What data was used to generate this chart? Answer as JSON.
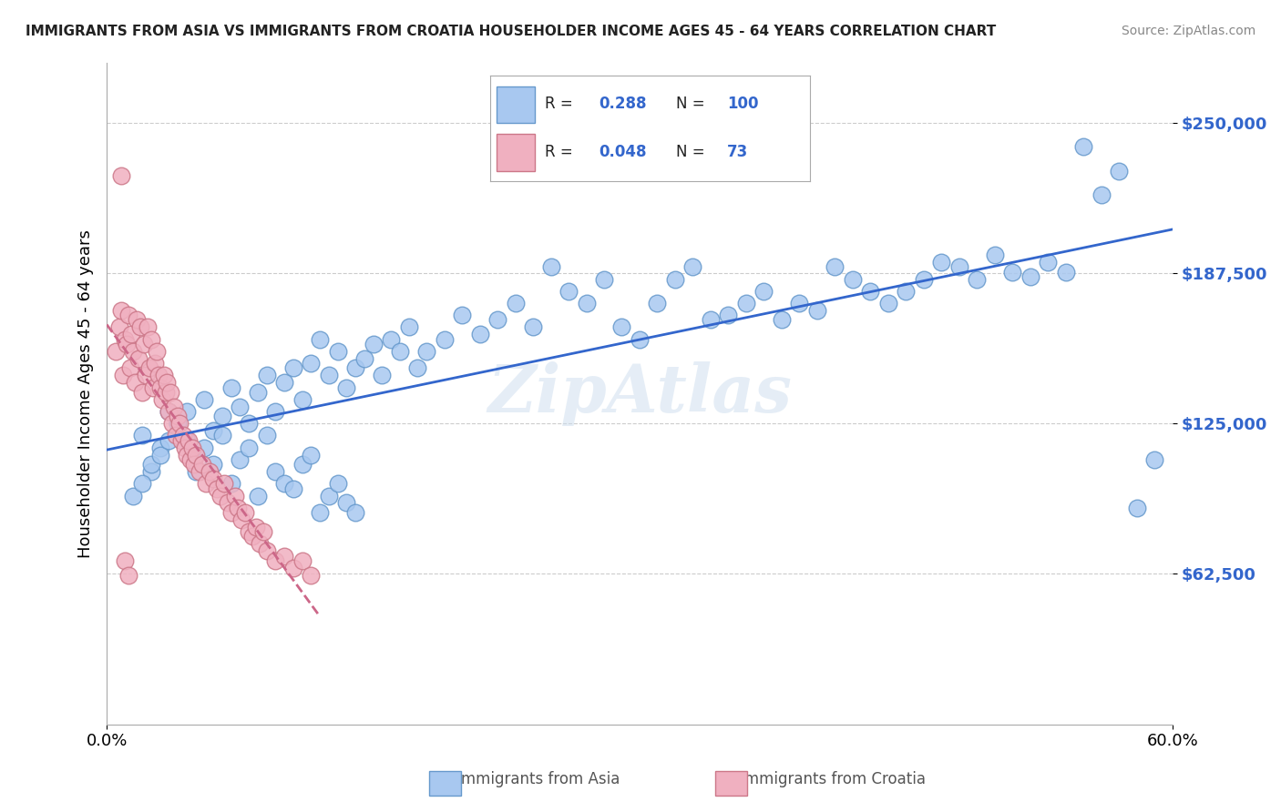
{
  "title": "IMMIGRANTS FROM ASIA VS IMMIGRANTS FROM CROATIA HOUSEHOLDER INCOME AGES 45 - 64 YEARS CORRELATION CHART",
  "source": "Source: ZipAtlas.com",
  "xlabel": "",
  "ylabel": "Householder Income Ages 45 - 64 years",
  "x_min": 0.0,
  "x_max": 0.6,
  "y_min": 0,
  "y_max": 275000,
  "y_ticks": [
    62500,
    125000,
    187500,
    250000
  ],
  "y_tick_labels": [
    "$62,500",
    "$125,000",
    "$187,500",
    "$250,000"
  ],
  "x_tick_labels": [
    "0.0%",
    "60.0%"
  ],
  "legend_asia_R": "0.288",
  "legend_asia_N": "100",
  "legend_croatia_R": "0.048",
  "legend_croatia_N": "73",
  "asia_color": "#a8c8f0",
  "asia_edge_color": "#6699cc",
  "croatia_color": "#f0b0c0",
  "croatia_edge_color": "#cc7788",
  "trend_asia_color": "#3366cc",
  "trend_croatia_color": "#cc6688",
  "watermark": "ZipAtlas",
  "background_color": "#ffffff",
  "grid_color": "#cccccc",
  "asia_scatter_x": [
    0.02,
    0.025,
    0.03,
    0.035,
    0.04,
    0.045,
    0.05,
    0.055,
    0.06,
    0.065,
    0.07,
    0.075,
    0.08,
    0.085,
    0.09,
    0.095,
    0.1,
    0.105,
    0.11,
    0.115,
    0.12,
    0.125,
    0.13,
    0.135,
    0.14,
    0.145,
    0.15,
    0.155,
    0.16,
    0.165,
    0.17,
    0.175,
    0.18,
    0.19,
    0.2,
    0.21,
    0.22,
    0.23,
    0.24,
    0.25,
    0.26,
    0.27,
    0.28,
    0.29,
    0.3,
    0.31,
    0.32,
    0.33,
    0.34,
    0.35,
    0.36,
    0.37,
    0.38,
    0.39,
    0.4,
    0.41,
    0.42,
    0.43,
    0.44,
    0.45,
    0.46,
    0.47,
    0.48,
    0.49,
    0.5,
    0.51,
    0.52,
    0.53,
    0.54,
    0.55,
    0.56,
    0.57,
    0.58,
    0.59,
    0.015,
    0.02,
    0.025,
    0.03,
    0.035,
    0.04,
    0.045,
    0.05,
    0.055,
    0.06,
    0.065,
    0.07,
    0.075,
    0.08,
    0.085,
    0.09,
    0.095,
    0.1,
    0.105,
    0.11,
    0.115,
    0.12,
    0.125,
    0.13,
    0.135,
    0.14
  ],
  "asia_scatter_y": [
    120000,
    105000,
    115000,
    130000,
    125000,
    118000,
    112000,
    135000,
    122000,
    128000,
    140000,
    132000,
    125000,
    138000,
    145000,
    130000,
    142000,
    148000,
    135000,
    150000,
    160000,
    145000,
    155000,
    140000,
    148000,
    152000,
    158000,
    145000,
    160000,
    155000,
    165000,
    148000,
    155000,
    160000,
    170000,
    162000,
    168000,
    175000,
    165000,
    190000,
    180000,
    175000,
    185000,
    165000,
    160000,
    175000,
    185000,
    190000,
    168000,
    170000,
    175000,
    180000,
    168000,
    175000,
    172000,
    190000,
    185000,
    180000,
    175000,
    180000,
    185000,
    192000,
    190000,
    185000,
    195000,
    188000,
    186000,
    192000,
    188000,
    240000,
    220000,
    230000,
    90000,
    110000,
    95000,
    100000,
    108000,
    112000,
    118000,
    125000,
    130000,
    105000,
    115000,
    108000,
    120000,
    100000,
    110000,
    115000,
    95000,
    120000,
    105000,
    100000,
    98000,
    108000,
    112000,
    88000,
    95000,
    100000,
    92000,
    88000
  ],
  "croatia_scatter_x": [
    0.005,
    0.007,
    0.008,
    0.009,
    0.01,
    0.011,
    0.012,
    0.013,
    0.014,
    0.015,
    0.016,
    0.017,
    0.018,
    0.019,
    0.02,
    0.021,
    0.022,
    0.023,
    0.024,
    0.025,
    0.026,
    0.027,
    0.028,
    0.029,
    0.03,
    0.031,
    0.032,
    0.033,
    0.034,
    0.035,
    0.036,
    0.037,
    0.038,
    0.039,
    0.04,
    0.041,
    0.042,
    0.043,
    0.044,
    0.045,
    0.046,
    0.047,
    0.048,
    0.049,
    0.05,
    0.052,
    0.054,
    0.056,
    0.058,
    0.06,
    0.062,
    0.064,
    0.066,
    0.068,
    0.07,
    0.072,
    0.074,
    0.076,
    0.078,
    0.08,
    0.082,
    0.084,
    0.086,
    0.088,
    0.09,
    0.095,
    0.1,
    0.105,
    0.11,
    0.115,
    0.008,
    0.01,
    0.012
  ],
  "croatia_scatter_y": [
    155000,
    165000,
    172000,
    145000,
    160000,
    158000,
    170000,
    148000,
    162000,
    155000,
    142000,
    168000,
    152000,
    165000,
    138000,
    158000,
    145000,
    165000,
    148000,
    160000,
    140000,
    150000,
    155000,
    145000,
    140000,
    135000,
    145000,
    138000,
    142000,
    130000,
    138000,
    125000,
    132000,
    120000,
    128000,
    125000,
    118000,
    120000,
    115000,
    112000,
    118000,
    110000,
    115000,
    108000,
    112000,
    105000,
    108000,
    100000,
    105000,
    102000,
    98000,
    95000,
    100000,
    92000,
    88000,
    95000,
    90000,
    85000,
    88000,
    80000,
    78000,
    82000,
    75000,
    80000,
    72000,
    68000,
    70000,
    65000,
    68000,
    62000,
    228000,
    68000,
    62000
  ]
}
